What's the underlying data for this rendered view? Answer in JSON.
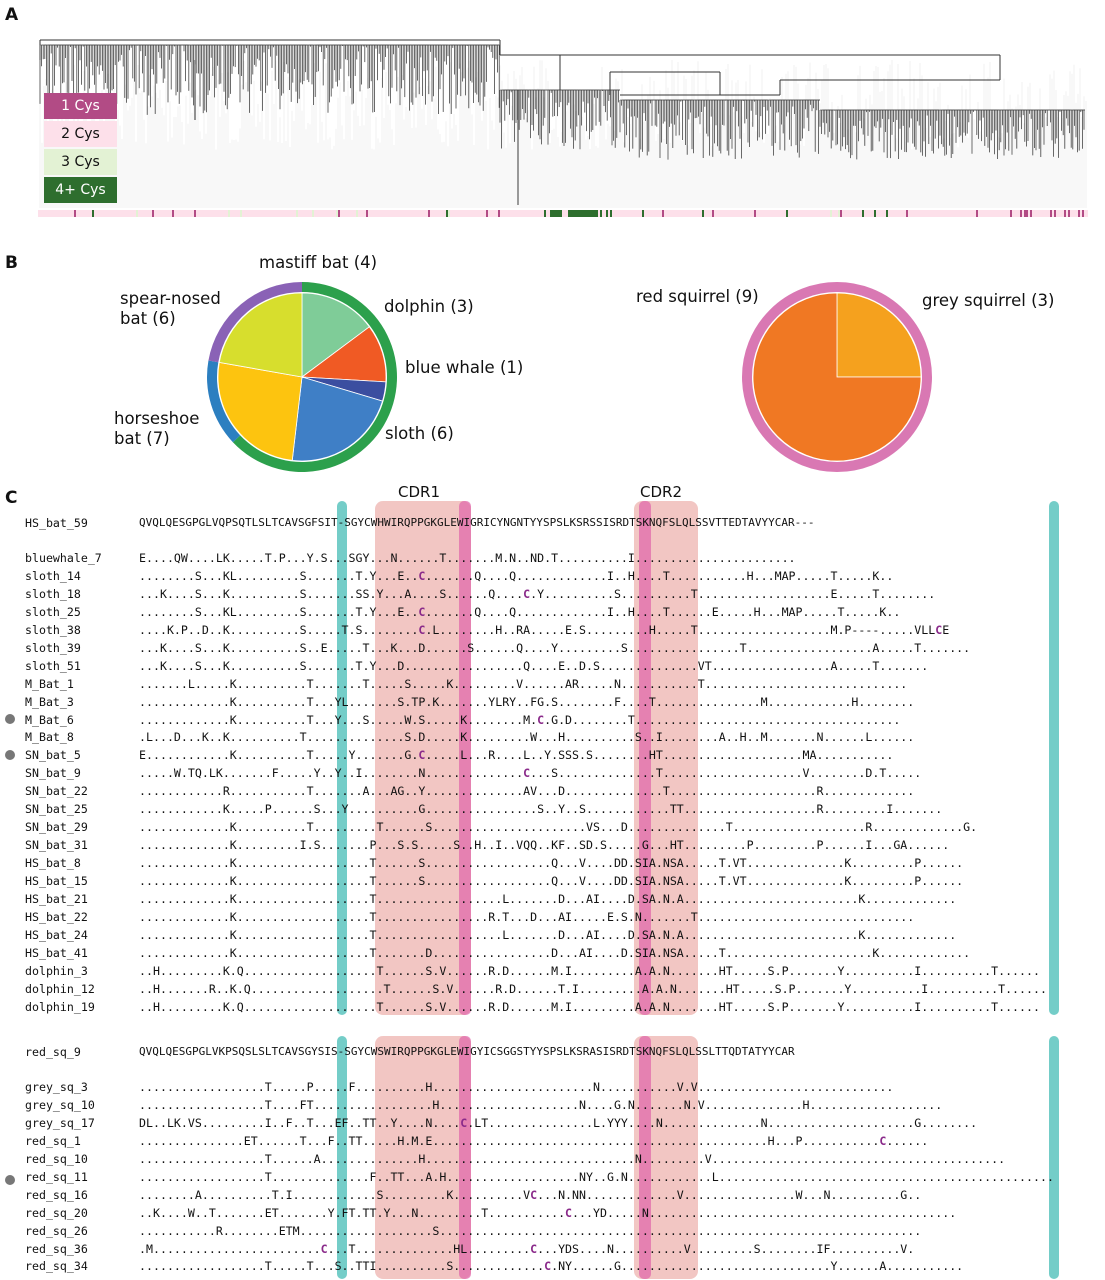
{
  "figure": {
    "panel_a_label": "A",
    "panel_b_label": "B",
    "panel_c_label": "C"
  },
  "panel_a": {
    "legend": [
      {
        "label": "1 Cys",
        "color": "#b24b85",
        "text_color": "#ffffff"
      },
      {
        "label": "2 Cys",
        "color": "#fde0ea",
        "text_color": "#111111"
      },
      {
        "label": "3 Cys",
        "color": "#e3f2d4",
        "text_color": "#111111"
      },
      {
        "label": "4+ Cys",
        "color": "#2e6e2e",
        "text_color": "#ffffff"
      }
    ]
  },
  "chart_data": [
    {
      "type": "pie",
      "slices": [
        {
          "label": "mastiff bat (4)",
          "value": 4,
          "color": "#7fcc98"
        },
        {
          "label": "dolphin (3)",
          "value": 3,
          "color": "#f05a24"
        },
        {
          "label": "blue whale (1)",
          "value": 1,
          "color": "#3b4ea0"
        },
        {
          "label": "sloth (6)",
          "value": 6,
          "color": "#3f7fc6"
        },
        {
          "label": "horseshoe bat (7)",
          "value": 7,
          "color": "#fdc40f"
        },
        {
          "label": "spear-nosed bat (6)",
          "value": 6,
          "color": "#d7de2d"
        }
      ],
      "ring": [
        {
          "group": "bat",
          "value": 17,
          "color": "#2ca04c"
        },
        {
          "group": "cetacean",
          "value": 4,
          "color": "#2c7fc0"
        },
        {
          "group": "sloth",
          "value": 6,
          "color": "#8a62b6"
        }
      ]
    },
    {
      "type": "pie",
      "slices": [
        {
          "label": "grey squirrel (3)",
          "value": 3,
          "color": "#f5a11e"
        },
        {
          "label": "red squirrel (9)",
          "value": 9,
          "color": "#f07823"
        }
      ],
      "ring": [
        {
          "group": "squirrel",
          "value": 12,
          "color": "#d978b3"
        }
      ]
    }
  ],
  "panel_c": {
    "cdr1_label": "CDR1",
    "cdr2_label": "CDR2",
    "block1": [
      {
        "name": "HS_bat_59",
        "seq": "QVQLQESGPGLVQPSQTLSLTCAVSGFSIT-SGYCWHWIRQPPGKGLEWIGRICYNGNTYYSPSLKSRSSISRDTSKNQFSLQLSSVTTEDTAVYYCAR---"
      },
      {
        "name": "bluewhale_7",
        "seq": "E....QW....LK.....T.P...Y.S...SGY...N......T.......M.N..ND.T..........I......................."
      },
      {
        "name": "sloth_14",
        "seq": "........S...KL.........S.......T.Y...E..C.......Q....Q.............I..H....T...........H...MAP.....T.....K.."
      },
      {
        "name": "sloth_18",
        "seq": "...K....S...K..........S.......SS.Y...A....S......Q....C.Y..........S..........T...................E.....T........"
      },
      {
        "name": "sloth_25",
        "seq": "........S...KL.........S.......T.Y...E..C.......Q....Q.............I..H....T......E.....H...MAP.....T.....K.."
      },
      {
        "name": "sloth_38",
        "seq": "....K.P..D..K..........S.....T.S........C.L........H..RA.....E.S.........H.....T...................M.P----.....VLLCE"
      },
      {
        "name": "sloth_39",
        "seq": "...K....S...K..........S..E.....T...K...D......S......Q....Y.........S................T..................A.....T......."
      },
      {
        "name": "sloth_51",
        "seq": "...K....S...K..........S.......T.Y...D.................Q....E..D.S..............VT.................A.....T......."
      },
      {
        "name": "M_Bat_1",
        "seq": ".......L.....K..........T.......T.....S.....K.........V......AR.....N...........T............................."
      },
      {
        "name": "M_Bat_3",
        "seq": ".............K..........T...YL.......S.TP.K.......YLRY..FG.S........F....T...............M............H........"
      },
      {
        "name": "M_Bat_6",
        "seq": ".............K..........T...Y...S.....W.S.....K........M.C.G.D........T......................................"
      },
      {
        "name": "M_Bat_8",
        "seq": ".L...D...K..K..........T..............S.D.....K.........W...H..........S..I........A..H..M.......N......L......"
      },
      {
        "name": "SN_bat_5",
        "seq": "E............K..........T.....Y.......G.C.....L...R....L..Y.SSS.S........HT....................MA..........."
      },
      {
        "name": "SN_bat_9",
        "seq": ".....W.TQ.LK.......F.....Y..Y..I........N..............C...S..............T....................V........D.T....."
      },
      {
        "name": "SN_bat_22",
        "seq": "............R...........T.......A...AG..Y..............AV...D..............T.....................R............."
      },
      {
        "name": "SN_bat_25",
        "seq": "............K.....P......S...Y..........G................S..Y..S............TT...................R.........I......."
      },
      {
        "name": "SN_bat_29",
        "seq": ".............K..........T.........T......S......................VS...D..............T...................R.............G."
      },
      {
        "name": "SN_bat_31",
        "seq": ".............K.........I.S.......P...S.S.....S..H..I..VQQ..KF..SD.S.....G...HT.........P.........P......I...GA......"
      },
      {
        "name": "HS_bat_8",
        "seq": ".............K...................T......S..................Q...V....DD.SIA.NSA.....T.VT..............K.........P......"
      },
      {
        "name": "HS_bat_15",
        "seq": ".............K...................T......S..................Q...V....DD.SIA.NSA.....T.VT..............K.........P......"
      },
      {
        "name": "HS_bat_21",
        "seq": ".............K...................T..................L.......D...AI....D.SA.N.A.........................K............."
      },
      {
        "name": "HS_bat_22",
        "seq": ".............K...................T................R.T...D...AI.....E.S.N.......T..............................."
      },
      {
        "name": "HS_bat_24",
        "seq": ".............K...................T..................L.......D...AI....D.SA.N.A.........................K............."
      },
      {
        "name": "HS_bat_41",
        "seq": ".............K...................T.......D.................D...AI....D.SIA.NSA.....T.....................K............."
      },
      {
        "name": "dolphin_3",
        "seq": "..H.........K.Q...................T......S.V......R.D......M.I.........A.A.N.......HT.....S.P.......Y..........I..........T......"
      },
      {
        "name": "dolphin_12",
        "seq": "..H.......R..K.Q...................T......S.V......R.D......T.I.........A.A.N.......HT.....S.P.......Y..........I..........T......"
      },
      {
        "name": "dolphin_19",
        "seq": "..H.........K.Q...................T......S.V......R.D......M.I.........A.A.N.......HT.....S.P.......Y..........I..........T......"
      }
    ],
    "block2": [
      {
        "name": "red_sq_9",
        "seq": "QVQLQESGPGLVKPSQSLSLTCAVSGYSIS-SGYCWSWIRQPPGKGLEWIGYICSGGSTYYSPSLKSRASISRDTSKNQFSLQLSSLTTQDTATYYCAR"
      },
      {
        "name": "grey_sq_3",
        "seq": "..................T.....P.....F..........H.......................N...........V.V............................"
      },
      {
        "name": "grey_sq_10",
        "seq": "..................T....FT.................H....................N....G.N.......N.V..............H..................."
      },
      {
        "name": "grey_sq_17",
        "seq": "DL..LK.VS.........I..F..T...EF..TT..Y....N....C.LT...............L.YYY....N..............N.....................G........"
      },
      {
        "name": "red_sq_1",
        "seq": "...............ET......T...F..TT.....H.M.E................................................H...P...........C......"
      },
      {
        "name": "red_sq_10",
        "seq": "..................T......A..............H..............................N.........V.........................................."
      },
      {
        "name": "red_sq_11",
        "seq": "..................T..............F..TT...A.H...................NY..G.N............L................................................"
      },
      {
        "name": "red_sq_16",
        "seq": "........A..........T.I............S.........K..........VC...N.NN.............V................W...N..........G.."
      },
      {
        "name": "red_sq_20",
        "seq": "..K....W..T.......ET.......Y.FT.TT.Y...N.........T...........C...YD.....N............................................"
      },
      {
        "name": "red_sq_26",
        "seq": "...........R........ETM...................S....................................................................."
      },
      {
        "name": "red_sq_36",
        "seq": ".M........................C...T..............HL.........C...YDS....N..........V.........S........IF..........V."
      },
      {
        "name": "red_sq_34",
        "seq": "..................T.....T...S..TTI..........S.............C.NY......G..............................Y......A..........."
      }
    ]
  }
}
